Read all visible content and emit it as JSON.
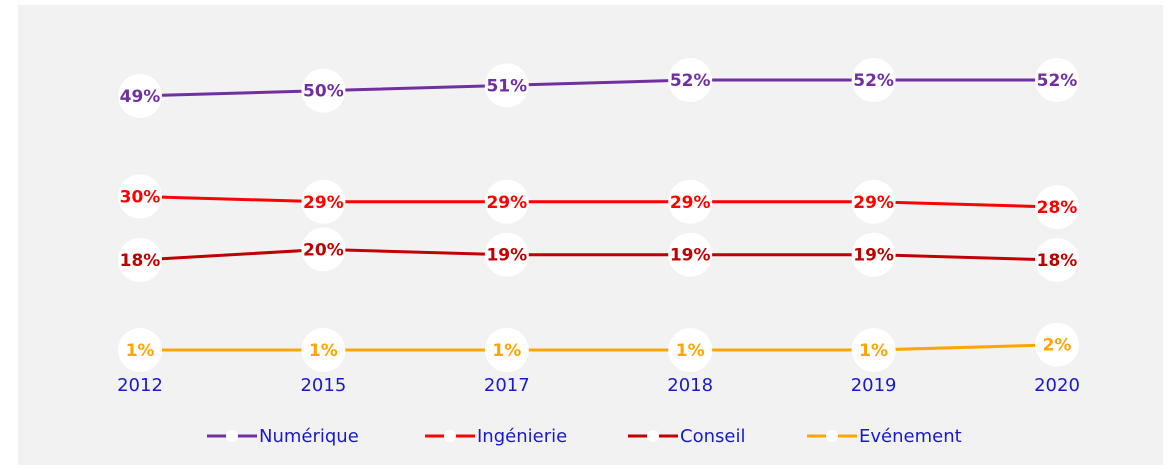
{
  "chart_data": {
    "type": "line",
    "categories": [
      "2012",
      "2015",
      "2017",
      "2018",
      "2019",
      "2020"
    ],
    "series": [
      {
        "name": "Numérique",
        "color": "#7030a0",
        "values": [
          49,
          50,
          51,
          52,
          52,
          52
        ],
        "value_labels": [
          "49%",
          "50%",
          "51%",
          "52%",
          "52%",
          "52%"
        ]
      },
      {
        "name": "Ingénierie",
        "color": "#ff0000",
        "values": [
          30,
          29,
          29,
          29,
          29,
          28
        ],
        "value_labels": [
          "30%",
          "29%",
          "29%",
          "29%",
          "29%",
          "28%"
        ]
      },
      {
        "name": "Conseil",
        "color": "#c00000",
        "values": [
          18,
          20,
          19,
          19,
          19,
          18
        ],
        "value_labels": [
          "18%",
          "20%",
          "19%",
          "19%",
          "19%",
          "18%"
        ]
      },
      {
        "name": "Evénement",
        "color": "#ffa500",
        "values": [
          1,
          1,
          1,
          1,
          1,
          2
        ],
        "value_labels": [
          "1%",
          "1%",
          "1%",
          "1%",
          "1%",
          "2%"
        ]
      }
    ],
    "ylim": [
      0,
      60
    ],
    "legend": "bottom"
  }
}
